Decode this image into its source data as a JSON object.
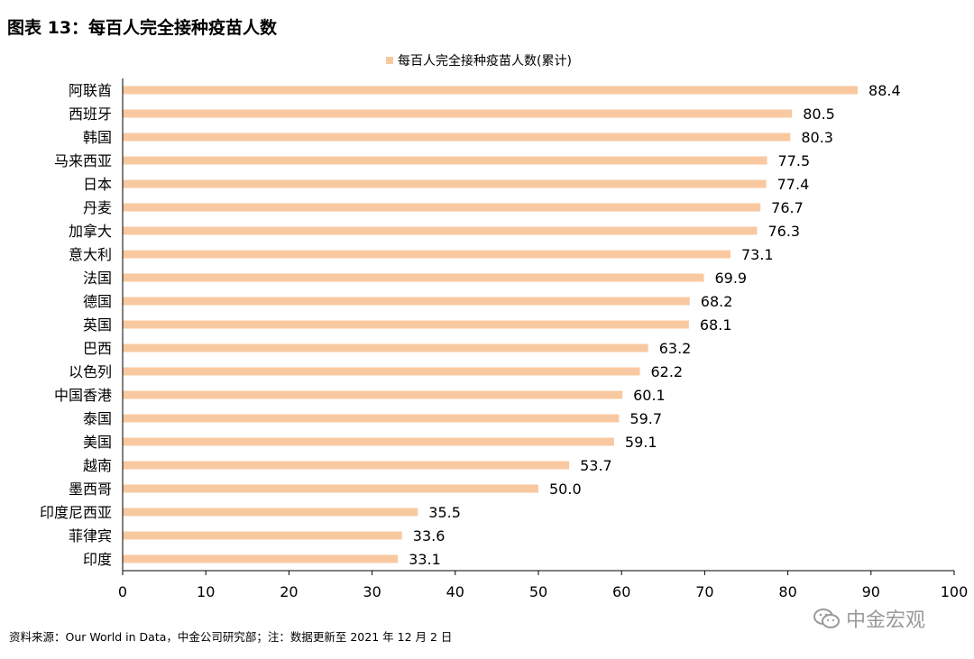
{
  "figure_title": "图表 13：每百人完全接种疫苗人数",
  "source_note": "资料来源：Our World in Data，中金公司研究部；注：数据更新至 2021 年 12 月 2 日",
  "watermark": {
    "text": "中金宏观",
    "icon": "wechat-icon"
  },
  "chart_data": {
    "type": "bar",
    "orientation": "horizontal",
    "title": "",
    "xlabel": "",
    "ylabel": "",
    "xlim": [
      0,
      100
    ],
    "x_ticks": [
      0,
      10,
      20,
      30,
      40,
      50,
      60,
      70,
      80,
      90,
      100
    ],
    "grid": false,
    "legend": "top-center",
    "bar_color": "#f8c9a0",
    "categories": [
      "阿联酋",
      "西班牙",
      "韩国",
      "马来西亚",
      "日本",
      "丹麦",
      "加拿大",
      "意大利",
      "法国",
      "德国",
      "英国",
      "巴西",
      "以色列",
      "中国香港",
      "泰国",
      "美国",
      "越南",
      "墨西哥",
      "印度尼西亚",
      "菲律宾",
      "印度"
    ],
    "series": [
      {
        "name": "每百人完全接种疫苗人数(累计)",
        "values": [
          88.4,
          80.5,
          80.3,
          77.5,
          77.4,
          76.7,
          76.3,
          73.1,
          69.9,
          68.2,
          68.1,
          63.2,
          62.2,
          60.1,
          59.7,
          59.1,
          53.7,
          50.0,
          35.5,
          33.6,
          33.1
        ],
        "data_labels": [
          "88.4",
          "80.5",
          "80.3",
          "77.5",
          "77.4",
          "76.7",
          "76.3",
          "73.1",
          "69.9",
          "68.2",
          "68.1",
          "63.2",
          "62.2",
          "60.1",
          "59.7",
          "59.1",
          "53.7",
          "50.0",
          "35.5",
          "33.6",
          "33.1"
        ]
      }
    ]
  }
}
